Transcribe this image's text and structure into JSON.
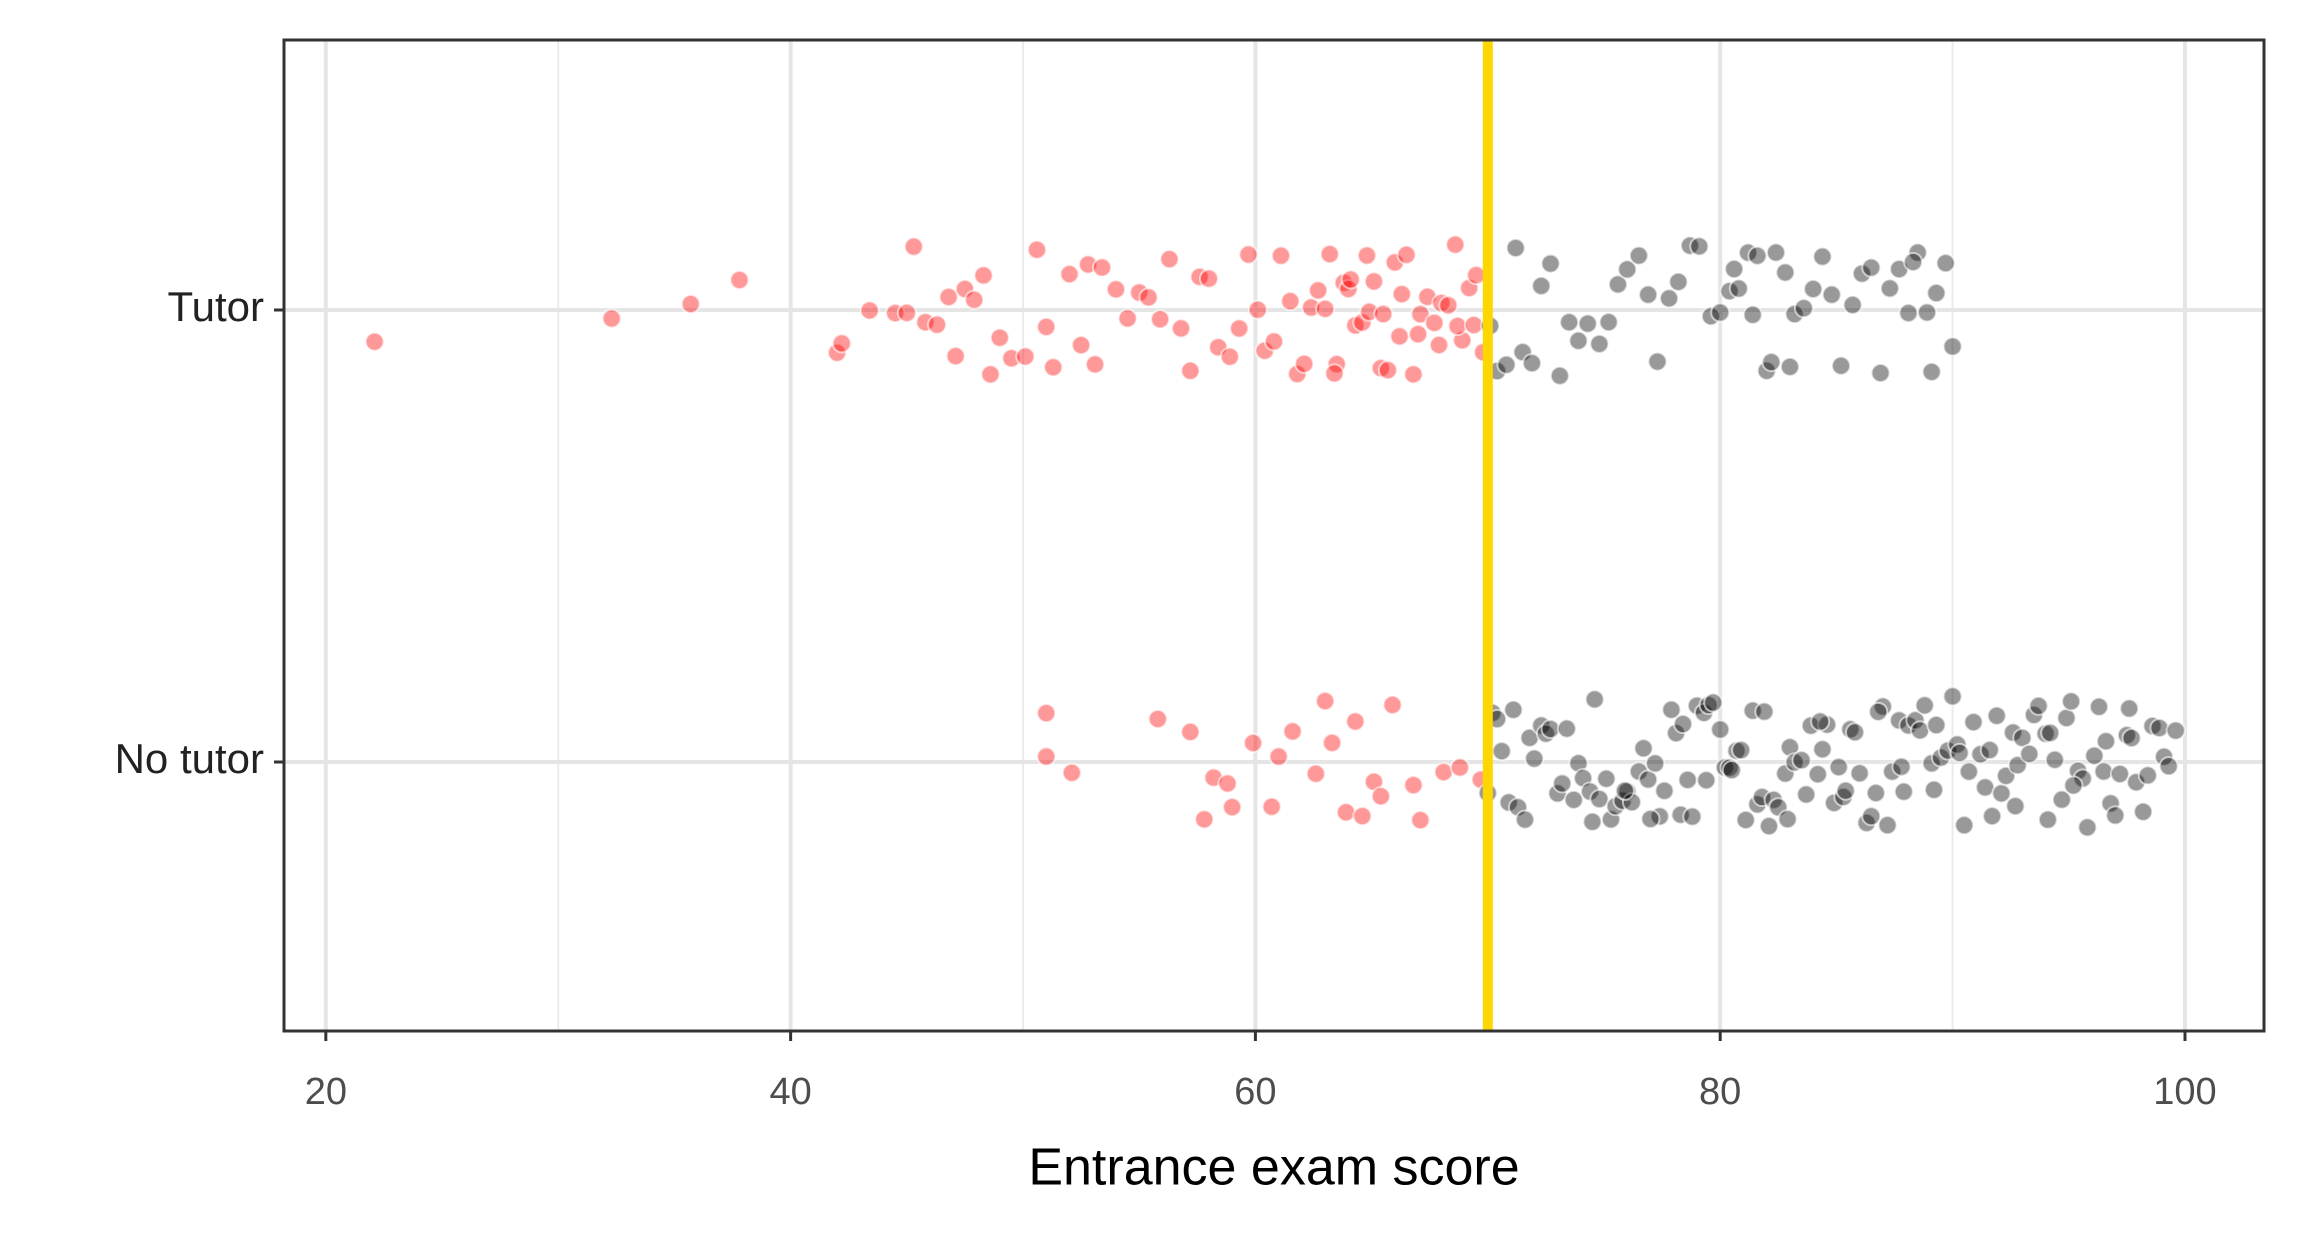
{
  "chart_data": {
    "type": "strip",
    "xlabel": "Entrance exam score",
    "categories": [
      "Tutor",
      "No tutor"
    ],
    "xlim": [
      18.2,
      103.4
    ],
    "xticks": [
      20,
      40,
      60,
      80,
      100
    ],
    "minor_xticks": [
      30,
      50,
      70,
      90
    ],
    "grid": true,
    "cutoff": 70,
    "cutoff_color": "#ffd700",
    "series": [
      {
        "color": "#ff0000",
        "values": [
          [
            22.1,
            32.3,
            35.7,
            37.8,
            42.0,
            42.2,
            43.4,
            44.5,
            45.0,
            45.3,
            45.8,
            46.3,
            46.8,
            47.1,
            47.5,
            47.9,
            48.3,
            48.6,
            49.0,
            49.5,
            50.1,
            50.6,
            51.0,
            51.3,
            52.0,
            52.5,
            52.8,
            53.1,
            53.4,
            54.0,
            54.5,
            55.0,
            55.4,
            55.9,
            56.3,
            56.8,
            57.2,
            57.6,
            58.0,
            58.4,
            58.9,
            59.3,
            59.7,
            60.1,
            60.4,
            60.8,
            61.1,
            61.5,
            61.8,
            62.1,
            62.4,
            62.7,
            63.0,
            63.2,
            63.5,
            63.8,
            64.0,
            64.3,
            64.6,
            64.9,
            65.1,
            65.4,
            65.7,
            66.0,
            66.2,
            66.5,
            66.8,
            67.1,
            67.4,
            67.7,
            68.0,
            68.3,
            68.6,
            68.9,
            69.2,
            69.5,
            69.8,
            63.4,
            64.1,
            64.8,
            65.5,
            66.3,
            67.0,
            67.9,
            68.7,
            69.4
          ],
          [
            51.0,
            51.0,
            52.1,
            55.8,
            57.2,
            57.8,
            58.2,
            58.8,
            59.0,
            59.9,
            60.7,
            61.0,
            61.6,
            62.6,
            63.0,
            63.3,
            63.9,
            64.3,
            64.6,
            65.1,
            65.4,
            65.9,
            66.8,
            67.1,
            68.1,
            68.8,
            69.7
          ]
        ]
      },
      {
        "color": "#000000",
        "values": [
          [
            70.1,
            70.4,
            70.8,
            71.2,
            71.5,
            71.9,
            72.3,
            72.7,
            73.1,
            73.5,
            73.9,
            74.3,
            74.8,
            75.2,
            75.6,
            76.0,
            76.5,
            76.9,
            77.3,
            77.8,
            78.2,
            78.7,
            79.1,
            79.6,
            80.0,
            80.4,
            80.8,
            81.2,
            81.6,
            82.0,
            82.4,
            82.8,
            83.2,
            83.6,
            84.0,
            84.4,
            84.8,
            85.2,
            85.7,
            86.1,
            86.5,
            86.9,
            87.3,
            87.7,
            88.1,
            88.5,
            88.9,
            89.3,
            89.7,
            90.0,
            80.6,
            81.4,
            82.2,
            83.0,
            88.3,
            89.1
          ],
          [
            70.0,
            70.2,
            70.4,
            70.6,
            70.9,
            71.1,
            71.3,
            71.6,
            71.8,
            72.0,
            72.3,
            72.5,
            72.7,
            73.0,
            73.2,
            73.4,
            73.7,
            73.9,
            74.1,
            74.4,
            74.6,
            74.8,
            75.1,
            75.3,
            75.5,
            75.8,
            76.0,
            76.2,
            76.5,
            76.7,
            76.9,
            77.2,
            77.4,
            77.6,
            77.9,
            78.1,
            78.3,
            78.6,
            78.8,
            79.0,
            79.3,
            79.5,
            79.7,
            80.0,
            80.2,
            80.4,
            80.7,
            80.9,
            81.1,
            81.4,
            81.6,
            81.8,
            82.1,
            82.3,
            82.5,
            82.8,
            83.0,
            83.2,
            83.5,
            83.7,
            83.9,
            84.2,
            84.4,
            84.6,
            84.9,
            85.1,
            85.3,
            85.6,
            85.8,
            86.0,
            86.3,
            86.5,
            86.7,
            87.0,
            87.2,
            87.4,
            87.7,
            87.9,
            88.1,
            88.4,
            88.6,
            88.8,
            89.1,
            89.3,
            89.5,
            89.8,
            90.0,
            90.2,
            90.5,
            90.7,
            90.9,
            91.2,
            91.4,
            91.6,
            91.9,
            92.1,
            92.3,
            92.6,
            92.8,
            93.0,
            93.3,
            93.5,
            93.7,
            94.0,
            94.2,
            94.4,
            94.7,
            94.9,
            95.1,
            95.4,
            95.6,
            95.8,
            96.1,
            96.3,
            96.5,
            96.8,
            97.0,
            97.2,
            97.5,
            97.7,
            97.9,
            98.2,
            98.4,
            98.6,
            98.9,
            99.1,
            99.3,
            99.6,
            75.9,
            78.4,
            80.5,
            82.9,
            85.4,
            87.8,
            90.3,
            92.7,
            95.2,
            97.6,
            74.5,
            77.0,
            79.4,
            81.9,
            84.3,
            86.8,
            89.2,
            91.7,
            94.1,
            96.6
          ]
        ]
      }
    ]
  }
}
